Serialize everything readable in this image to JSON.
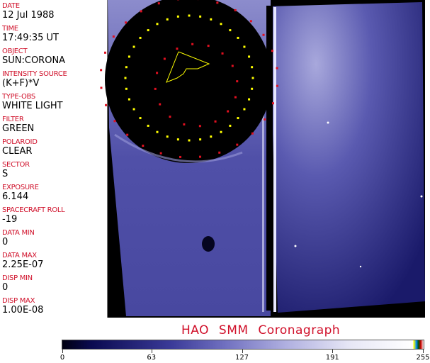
{
  "fields": [
    {
      "label": "DATE",
      "value": "12 Jul 1988"
    },
    {
      "label": "TIME",
      "value": "17:49:35 UT"
    },
    {
      "label": "OBJECT",
      "value": "SUN:CORONA"
    },
    {
      "label": "INTENSITY SOURCE",
      "value": "(K+F)*V"
    },
    {
      "label": "TYPE-OBS",
      "value": "WHITE LIGHT"
    },
    {
      "label": "FILTER",
      "value": "GREEN"
    },
    {
      "label": "POLAROID",
      "value": "CLEAR"
    },
    {
      "label": "SECTOR",
      "value": "S"
    },
    {
      "label": "EXPOSURE",
      "value": "6.144"
    },
    {
      "label": "SPACECRAFT ROLL",
      "value": "-19"
    },
    {
      "label": "DATA MIN",
      "value": "0"
    },
    {
      "label": "DATA MAX",
      "value": "2.25E-07"
    },
    {
      "label": "DISP MIN",
      "value": "0"
    },
    {
      "label": "DISP MAX",
      "value": "1.00E-08"
    }
  ],
  "title": "HAO   SMM  Coronagraph",
  "colorbar": {
    "ticks": [
      "0",
      "63",
      "127",
      "191",
      "255"
    ],
    "min": 0,
    "max": 255
  },
  "colors": {
    "label": "#d0102a",
    "image_blue": "#4a4aa0",
    "grid_yellow": "#ffff00",
    "grid_red": "#e01020"
  }
}
